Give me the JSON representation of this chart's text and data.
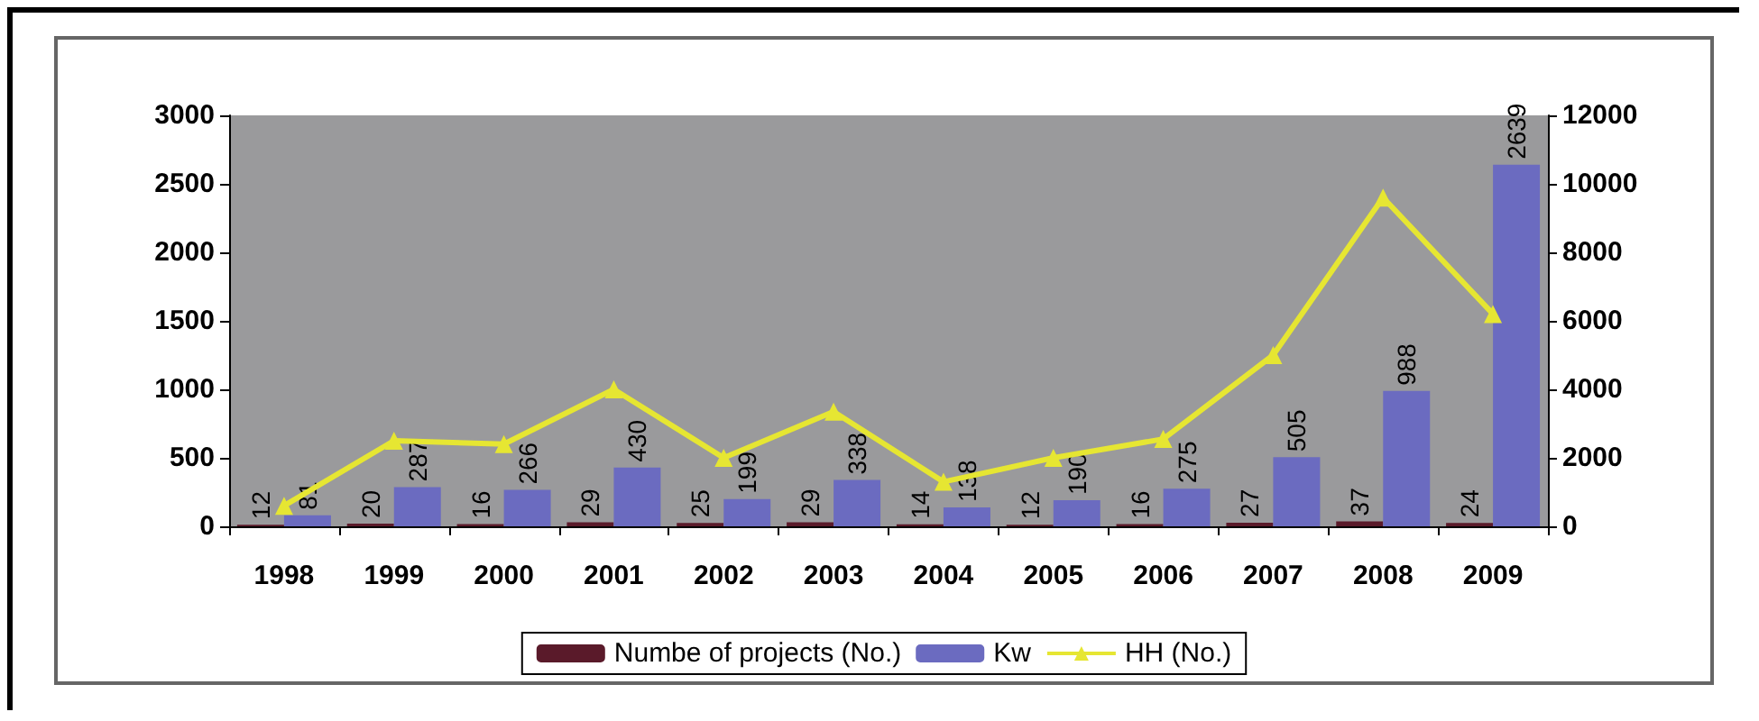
{
  "chart_data": {
    "type": "bar",
    "categories": [
      "1998",
      "1999",
      "2000",
      "2001",
      "2002",
      "2003",
      "2004",
      "2005",
      "2006",
      "2007",
      "2008",
      "2009"
    ],
    "series": [
      {
        "name": "Numbe of projects (No.)",
        "color": "#5a1a2a",
        "values": [
          12,
          20,
          16,
          29,
          25,
          29,
          14,
          12,
          16,
          27,
          37,
          24
        ],
        "value_labels": [
          "12",
          "20",
          "16",
          "29",
          "25",
          "29",
          "14",
          "12",
          "16",
          "27",
          "37",
          "24"
        ]
      },
      {
        "name": "Kw",
        "color": "#6b6bc0",
        "values": [
          81,
          287,
          266,
          430,
          199,
          338,
          138,
          190,
          275,
          505,
          988,
          2639
        ],
        "value_labels": [
          "81",
          "287",
          "266",
          "430",
          "199",
          "338",
          "138",
          "190",
          "275",
          "505",
          "988",
          "2639"
        ]
      },
      {
        "name": "HH (No.)",
        "type": "line",
        "axis": "y2",
        "color": "#e6e632",
        "marker": "triangle",
        "values": [
          600,
          2500,
          2400,
          4000,
          2000,
          3350,
          1300,
          2000,
          2550,
          5000,
          9600,
          6200
        ]
      }
    ],
    "ylim": [
      0,
      3000
    ],
    "yticks": [
      0,
      500,
      1000,
      1500,
      2000,
      2500,
      3000
    ],
    "y2lim": [
      0,
      12000
    ],
    "y2ticks": [
      0,
      2000,
      4000,
      6000,
      8000,
      10000,
      12000
    ],
    "grid": false,
    "legend": "bottom"
  }
}
